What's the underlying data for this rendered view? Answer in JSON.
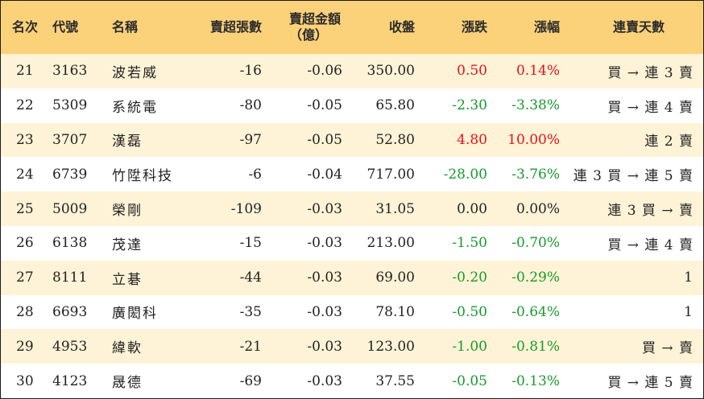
{
  "headers": {
    "rank": "名次",
    "code": "代號",
    "name": "名稱",
    "sell_lots": "賣超張數",
    "sell_amount_line1": "賣超金額",
    "sell_amount_line2": "（億）",
    "close": "收盤",
    "change": "漲跌",
    "change_pct": "漲幅",
    "streak": "連賣天數"
  },
  "rows": [
    {
      "rank": "21",
      "code": "3163",
      "name": "波若威",
      "sell_lots": "-16",
      "sell_amount": "-0.06",
      "close": "350.00",
      "change": "0.50",
      "change_pct": "0.14%",
      "streak": "買 → 連 3 賣",
      "direction": "up"
    },
    {
      "rank": "22",
      "code": "5309",
      "name": "系統電",
      "sell_lots": "-80",
      "sell_amount": "-0.05",
      "close": "65.80",
      "change": "-2.30",
      "change_pct": "-3.38%",
      "streak": "買 → 連 4 賣",
      "direction": "down"
    },
    {
      "rank": "23",
      "code": "3707",
      "name": "漢磊",
      "sell_lots": "-97",
      "sell_amount": "-0.05",
      "close": "52.80",
      "change": "4.80",
      "change_pct": "10.00%",
      "streak": "連 2 賣",
      "direction": "up"
    },
    {
      "rank": "24",
      "code": "6739",
      "name": "竹陞科技",
      "sell_lots": "-6",
      "sell_amount": "-0.04",
      "close": "717.00",
      "change": "-28.00",
      "change_pct": "-3.76%",
      "streak": "連 3 買 → 連 5 賣",
      "direction": "down"
    },
    {
      "rank": "25",
      "code": "5009",
      "name": "榮剛",
      "sell_lots": "-109",
      "sell_amount": "-0.03",
      "close": "31.05",
      "change": "0.00",
      "change_pct": "0.00%",
      "streak": "連 3 買 → 賣",
      "direction": "flat"
    },
    {
      "rank": "26",
      "code": "6138",
      "name": "茂達",
      "sell_lots": "-15",
      "sell_amount": "-0.03",
      "close": "213.00",
      "change": "-1.50",
      "change_pct": "-0.70%",
      "streak": "買 → 連 4 賣",
      "direction": "down"
    },
    {
      "rank": "27",
      "code": "8111",
      "name": "立碁",
      "sell_lots": "-44",
      "sell_amount": "-0.03",
      "close": "69.00",
      "change": "-0.20",
      "change_pct": "-0.29%",
      "streak": "1",
      "direction": "down"
    },
    {
      "rank": "28",
      "code": "6693",
      "name": "廣閎科",
      "sell_lots": "-35",
      "sell_amount": "-0.03",
      "close": "78.10",
      "change": "-0.50",
      "change_pct": "-0.64%",
      "streak": "1",
      "direction": "down"
    },
    {
      "rank": "29",
      "code": "4953",
      "name": "緯軟",
      "sell_lots": "-21",
      "sell_amount": "-0.03",
      "close": "123.00",
      "change": "-1.00",
      "change_pct": "-0.81%",
      "streak": "買 → 賣",
      "direction": "down"
    },
    {
      "rank": "30",
      "code": "4123",
      "name": "晟德",
      "sell_lots": "-69",
      "sell_amount": "-0.03",
      "close": "37.55",
      "change": "-0.05",
      "change_pct": "-0.13%",
      "streak": "買 → 連 5 賣",
      "direction": "down"
    }
  ],
  "colors": {
    "header_bg": "#fbd27a",
    "row_alt_bg": "#fef3d6",
    "up": "#e8101a",
    "down": "#179a2c"
  }
}
